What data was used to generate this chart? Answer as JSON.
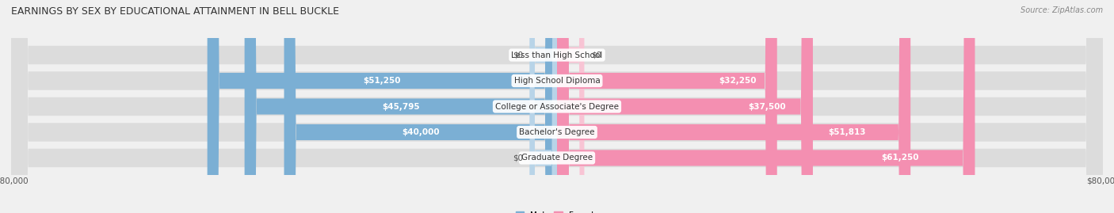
{
  "title": "EARNINGS BY SEX BY EDUCATIONAL ATTAINMENT IN BELL BUCKLE",
  "source": "Source: ZipAtlas.com",
  "categories": [
    "Less than High School",
    "High School Diploma",
    "College or Associate's Degree",
    "Bachelor's Degree",
    "Graduate Degree"
  ],
  "male_values": [
    0,
    51250,
    45795,
    40000,
    0
  ],
  "female_values": [
    0,
    32250,
    37500,
    51813,
    61250
  ],
  "male_labels": [
    "$0",
    "$51,250",
    "$45,795",
    "$40,000",
    "$0"
  ],
  "female_labels": [
    "$0",
    "$32,250",
    "$37,500",
    "$51,813",
    "$61,250"
  ],
  "male_color": "#7bafd4",
  "female_color": "#f48fb1",
  "male_color_light": "#b8d4e8",
  "female_color_light": "#f8c4d4",
  "axis_max": 80000,
  "background_color": "#f0f0f0",
  "title_fontsize": 9,
  "source_fontsize": 7,
  "label_fontsize": 7.5,
  "category_fontsize": 7.5,
  "axis_label_fontsize": 7.5
}
